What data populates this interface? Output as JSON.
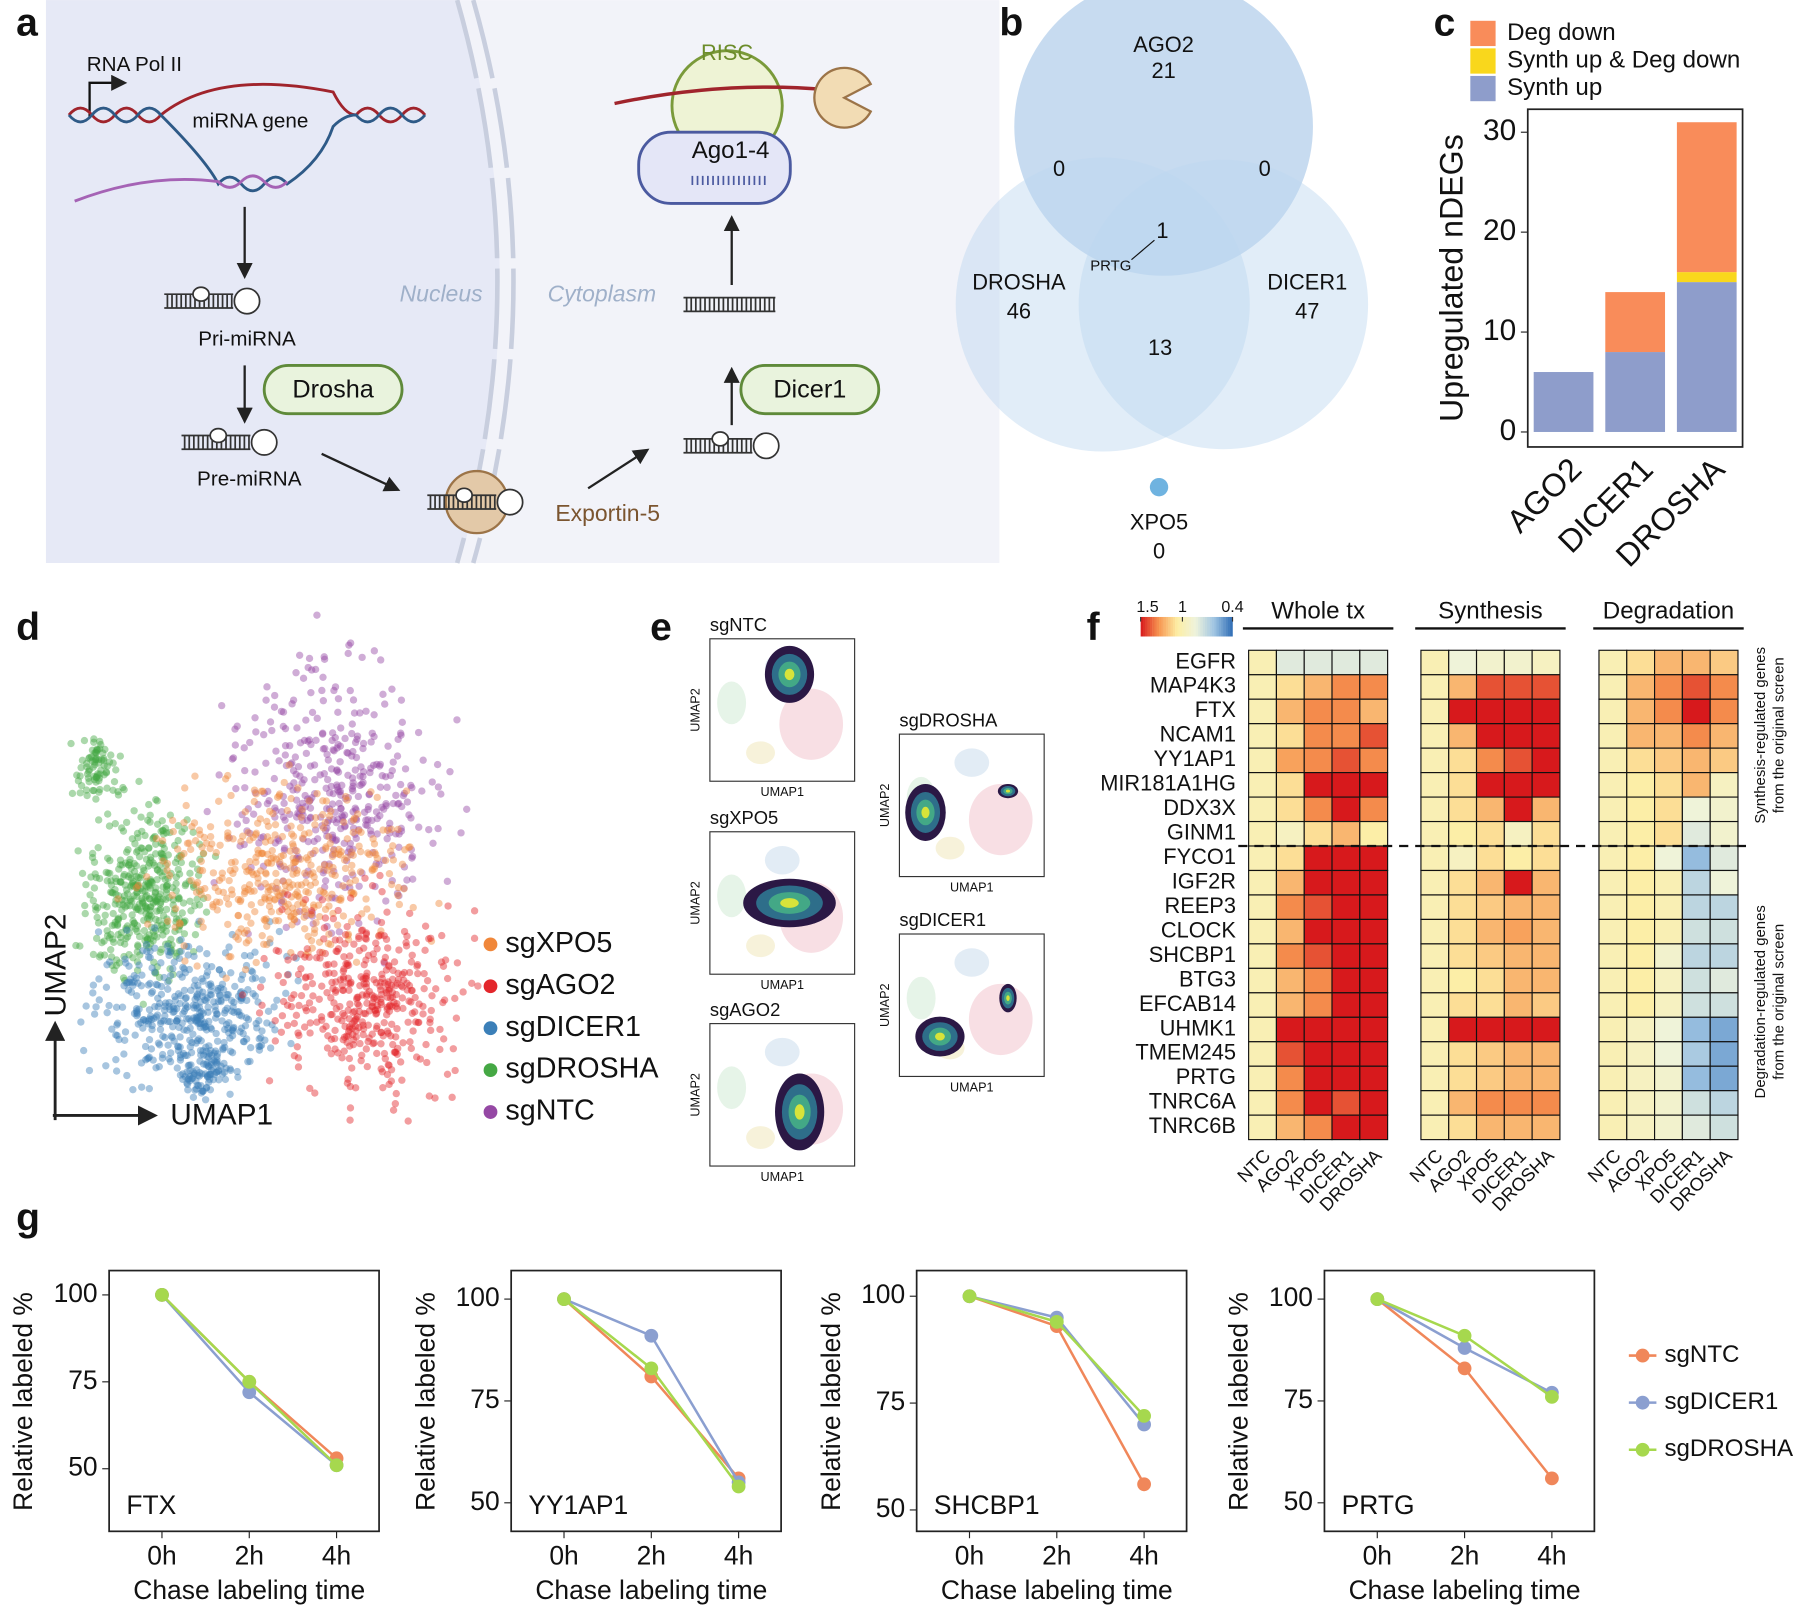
{
  "panel_labels": [
    "a",
    "b",
    "c",
    "d",
    "e",
    "f",
    "g"
  ],
  "diagram": {
    "rna_pol": "RNA Pol II",
    "gene": "miRNA gene",
    "pri": "Pri-miRNA",
    "drosha": "Drosha",
    "pre": "Pre-miRNA",
    "nucleus": "Nucleus",
    "cytoplasm": "Cytoplasm",
    "exportin": "Exportin-5",
    "dicer": "Dicer1",
    "ago": "Ago1-4",
    "risc": "RISC"
  },
  "venn": {
    "ago2": {
      "label": "AGO2",
      "count": 21
    },
    "drosha": {
      "label": "DROSHA",
      "count": 46
    },
    "dicer1": {
      "label": "DICER1",
      "count": 47
    },
    "ago2_drosha": 0,
    "ago2_dicer1": 0,
    "drosha_dicer1": 13,
    "all": 1,
    "all_gene": "PRTG",
    "xpo5": {
      "label": "XPO5",
      "count": 0
    }
  },
  "umap": {
    "xlabel": "UMAP1",
    "ylabel": "UMAP2",
    "groups": [
      {
        "label": "sgXPO5",
        "color": "#f0873a"
      },
      {
        "label": "sgAGO2",
        "color": "#e3262b"
      },
      {
        "label": "sgDICER1",
        "color": "#3b7fb8"
      },
      {
        "label": "sgDROSHA",
        "color": "#45a844"
      },
      {
        "label": "sgNTC",
        "color": "#9548a4"
      }
    ]
  },
  "density": {
    "xlabel": "UMAP1",
    "ylabel": "UMAP2",
    "plots": [
      "sgNTC",
      "sgXPO5",
      "sgAGO2",
      "sgDROSHA",
      "sgDICER1"
    ]
  },
  "chart_data": [
    {
      "type": "bar",
      "stacked": true,
      "categories": [
        "AGO2",
        "DICER1",
        "DROSHA"
      ],
      "ylabel": "Upregulated nDEGs",
      "ylim": [
        -1.5,
        32.3
      ],
      "yticks": [
        0,
        10,
        20,
        30
      ],
      "legend": "top",
      "series": [
        {
          "name": "Synth up",
          "color": "#8e9dcb",
          "values": [
            6,
            8,
            15
          ]
        },
        {
          "name": "Synth up & Deg down",
          "color": "#f9d71c",
          "values": [
            0,
            0,
            1
          ]
        },
        {
          "name": "Deg down",
          "color": "#f98c5a",
          "values": [
            0,
            6,
            15
          ]
        }
      ]
    },
    {
      "type": "heatmap",
      "rows": [
        "EGFR",
        "MAP4K3",
        "FTX",
        "NCAM1",
        "YY1AP1",
        "MIR181A1HG",
        "DDX3X",
        "GINM1",
        "FYCO1",
        "IGF2R",
        "REEP3",
        "CLOCK",
        "SHCBP1",
        "BTG3",
        "EFCAB14",
        "UHMK1",
        "TMEM245",
        "PRTG",
        "TNRC6A",
        "TNRC6B"
      ],
      "columns": [
        "NTC",
        "AGO2",
        "XPO5",
        "DICER1",
        "DROSHA"
      ],
      "clim": [
        1.5,
        0.4
      ],
      "cticks": [
        1.5,
        1,
        0.4
      ],
      "colors": [
        "#d7191c",
        "#f79651",
        "#fdeea5",
        "#eef3dc",
        "#9fc4e2",
        "#2f6db5"
      ],
      "annotations": [
        "Synthesis-regulated genes",
        "from the original screen",
        "Degradation-regulated genes",
        "from the original screen"
      ],
      "groups": [
        {
          "title": "Whole tx",
          "values": [
            [
              1,
              0.8,
              0.8,
              0.8,
              0.8
            ],
            [
              1,
              1.1,
              1.2,
              1.3,
              1.3
            ],
            [
              1,
              1.2,
              1.3,
              1.3,
              1.2
            ],
            [
              1,
              1.1,
              1.3,
              1.3,
              1.4
            ],
            [
              1,
              1.25,
              1.3,
              1.4,
              1.3
            ],
            [
              1,
              1.1,
              1.5,
              1.5,
              1.5
            ],
            [
              1,
              1.1,
              1.3,
              1.5,
              1.3
            ],
            [
              1,
              0.95,
              1.1,
              1.2,
              1.05
            ],
            [
              1,
              1.1,
              1.5,
              1.5,
              1.5
            ],
            [
              1,
              1.2,
              1.5,
              1.5,
              1.5
            ],
            [
              1,
              1.3,
              1.4,
              1.5,
              1.5
            ],
            [
              1,
              1.2,
              1.5,
              1.5,
              1.5
            ],
            [
              1,
              1.3,
              1.4,
              1.5,
              1.5
            ],
            [
              1,
              1.2,
              1.3,
              1.5,
              1.5
            ],
            [
              1,
              1.2,
              1.3,
              1.5,
              1.5
            ],
            [
              1,
              1.5,
              1.5,
              1.5,
              1.5
            ],
            [
              1,
              1.4,
              1.5,
              1.5,
              1.5
            ],
            [
              1,
              1.3,
              1.5,
              1.5,
              1.5
            ],
            [
              1,
              1.3,
              1.5,
              1.4,
              1.5
            ],
            [
              1,
              1.2,
              1.3,
              1.5,
              1.5
            ]
          ]
        },
        {
          "title": "Synthesis",
          "values": [
            [
              1,
              0.85,
              0.9,
              0.9,
              0.95
            ],
            [
              1,
              1.2,
              1.4,
              1.4,
              1.4
            ],
            [
              1,
              1.5,
              1.5,
              1.5,
              1.5
            ],
            [
              1,
              1.2,
              1.5,
              1.5,
              1.5
            ],
            [
              1,
              1.1,
              1.3,
              1.4,
              1.5
            ],
            [
              1,
              1.1,
              1.5,
              1.5,
              1.5
            ],
            [
              1,
              1.1,
              1.2,
              1.5,
              1.2
            ],
            [
              1,
              1.05,
              1.1,
              0.95,
              1.1
            ],
            [
              1,
              0.95,
              1.1,
              1.05,
              1.1
            ],
            [
              1,
              1.1,
              1.2,
              1.5,
              1.2
            ],
            [
              1,
              1.1,
              1.15,
              1.2,
              1.2
            ],
            [
              1,
              1.1,
              1.2,
              1.25,
              1.2
            ],
            [
              1,
              1.1,
              1.15,
              1.2,
              1.2
            ],
            [
              1,
              1.05,
              1.1,
              1.2,
              1.2
            ],
            [
              1,
              1.1,
              1.1,
              1.2,
              1.15
            ],
            [
              1,
              1.5,
              1.5,
              1.5,
              1.5
            ],
            [
              1,
              1.1,
              1.15,
              1.2,
              1.2
            ],
            [
              1,
              1.1,
              1.15,
              1.2,
              1.2
            ],
            [
              1,
              1.2,
              1.3,
              1.3,
              1.3
            ],
            [
              1,
              1.1,
              1.2,
              1.2,
              1.2
            ]
          ]
        },
        {
          "title": "Degradation",
          "values": [
            [
              1,
              1.1,
              1.2,
              1.2,
              1.15
            ],
            [
              1,
              1.2,
              1.3,
              1.4,
              1.3
            ],
            [
              1,
              1.2,
              1.3,
              1.5,
              1.3
            ],
            [
              1,
              1.2,
              1.2,
              1.3,
              1.2
            ],
            [
              1,
              1.1,
              1.15,
              1.2,
              1.15
            ],
            [
              1,
              1.05,
              1.1,
              1.2,
              0.95
            ],
            [
              1,
              1.05,
              1.1,
              0.85,
              0.9
            ],
            [
              1,
              1.05,
              1.1,
              0.8,
              0.9
            ],
            [
              1,
              1.05,
              0.85,
              0.6,
              0.8
            ],
            [
              1,
              1.05,
              1,
              0.7,
              0.85
            ],
            [
              1,
              1.05,
              1,
              0.7,
              0.7
            ],
            [
              1,
              1.05,
              1,
              0.75,
              0.75
            ],
            [
              1,
              1.05,
              0.9,
              0.7,
              0.7
            ],
            [
              1,
              1.05,
              0.95,
              0.75,
              0.8
            ],
            [
              1,
              1.05,
              0.95,
              0.75,
              0.75
            ],
            [
              1,
              0.95,
              0.85,
              0.6,
              0.55
            ],
            [
              1,
              0.95,
              0.85,
              0.65,
              0.55
            ],
            [
              1,
              0.95,
              0.9,
              0.6,
              0.55
            ],
            [
              1,
              0.95,
              0.9,
              0.75,
              0.7
            ],
            [
              1,
              0.95,
              0.9,
              0.8,
              0.75
            ]
          ]
        }
      ]
    },
    {
      "type": "line",
      "title": "FTX",
      "categories": [
        "0h",
        "2h",
        "4h"
      ],
      "xlabel": "Chase labeling time",
      "ylabel": "Relative labeled %",
      "ylim": [
        32,
        107
      ],
      "yticks": [
        50,
        75,
        100
      ],
      "series": [
        {
          "color": "#f0875a",
          "values": [
            100,
            75,
            53
          ]
        },
        {
          "color": "#8b9fd0",
          "values": [
            100,
            72,
            51
          ]
        },
        {
          "color": "#a6d84e",
          "values": [
            100,
            75,
            51
          ]
        }
      ]
    },
    {
      "type": "line",
      "title": "YY1AP1",
      "categories": [
        "0h",
        "2h",
        "4h"
      ],
      "xlabel": "Chase labeling time",
      "ylabel": "Relative labeled %",
      "ylim": [
        43,
        107
      ],
      "yticks": [
        50,
        75,
        100
      ],
      "series": [
        {
          "color": "#f0875a",
          "values": [
            100,
            81,
            56
          ]
        },
        {
          "color": "#8b9fd0",
          "values": [
            100,
            91,
            55
          ]
        },
        {
          "color": "#a6d84e",
          "values": [
            100,
            83,
            54
          ]
        }
      ]
    },
    {
      "type": "line",
      "title": "SHCBP1",
      "categories": [
        "0h",
        "2h",
        "4h"
      ],
      "xlabel": "Chase labeling time",
      "ylabel": "Relative labeled %",
      "ylim": [
        45,
        106
      ],
      "yticks": [
        50,
        75,
        100
      ],
      "series": [
        {
          "color": "#f0875a",
          "values": [
            100,
            93,
            56
          ]
        },
        {
          "color": "#8b9fd0",
          "values": [
            100,
            95,
            70
          ]
        },
        {
          "color": "#a6d84e",
          "values": [
            100,
            94,
            72
          ]
        }
      ]
    },
    {
      "type": "line",
      "title": "PRTG",
      "categories": [
        "0h",
        "2h",
        "4h"
      ],
      "xlabel": "Chase labeling time",
      "ylabel": "Relative labeled %",
      "ylim": [
        43,
        107
      ],
      "yticks": [
        50,
        75,
        100
      ],
      "legend": "right",
      "series": [
        {
          "name": "sgNTC",
          "color": "#f0875a",
          "values": [
            100,
            83,
            56
          ]
        },
        {
          "name": "sgDICER1",
          "color": "#8b9fd0",
          "values": [
            100,
            88,
            77
          ]
        },
        {
          "name": "sgDROSHA",
          "color": "#a6d84e",
          "values": [
            100,
            91,
            76
          ]
        }
      ]
    }
  ]
}
